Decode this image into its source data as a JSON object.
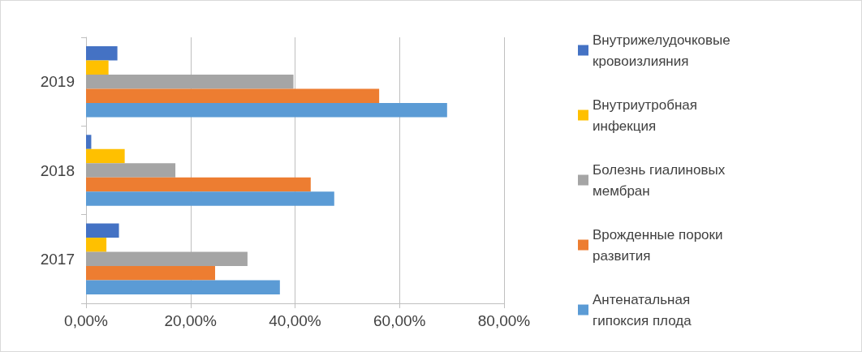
{
  "chart_data": {
    "type": "bar",
    "orientation": "horizontal",
    "categories": [
      "2019",
      "2018",
      "2017"
    ],
    "series": [
      {
        "name": "Внутрижелудочковые кровоизлияния",
        "color": "#4472c4",
        "values": [
          6.0,
          1.0,
          6.3
        ]
      },
      {
        "name": "Внутриутробная инфекция",
        "color": "#ffc000",
        "values": [
          4.3,
          7.4,
          3.9
        ]
      },
      {
        "name": "Болезнь гиалиновых мембран",
        "color": "#a5a5a5",
        "values": [
          39.7,
          17.1,
          30.9
        ]
      },
      {
        "name": "Врожденные пороки развития",
        "color": "#ed7d31",
        "values": [
          56.1,
          43.0,
          24.7
        ]
      },
      {
        "name": "Антенатальная гипоксия плода",
        "color": "#5b9bd5",
        "values": [
          69.1,
          47.5,
          37.1
        ]
      }
    ],
    "xlim": [
      0,
      80
    ],
    "xticks": [
      {
        "value": 0,
        "label": "0,00%"
      },
      {
        "value": 20,
        "label": "20,00%"
      },
      {
        "value": 40,
        "label": "40,00%"
      },
      {
        "value": 60,
        "label": "60,00%"
      },
      {
        "value": 80,
        "label": "80,00%"
      }
    ],
    "grid": "x",
    "legend": "right"
  }
}
